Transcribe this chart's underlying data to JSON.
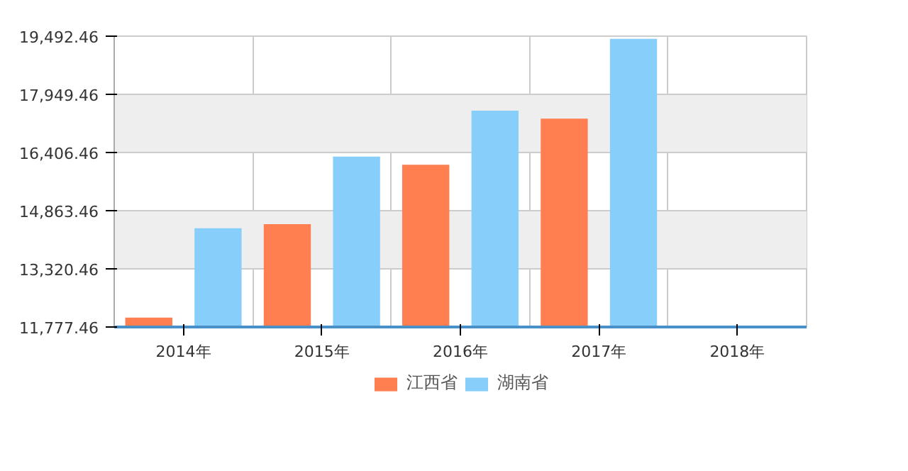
{
  "chart_data": {
    "type": "bar",
    "categories": [
      "2014年",
      "2015年",
      "2016年",
      "2017年",
      "2018年"
    ],
    "series": [
      {
        "name": "江西省",
        "color": "#ff7f50",
        "values": [
          12029,
          14504,
          16083,
          17303,
          null
        ]
      },
      {
        "name": "湖南省",
        "color": "#87cefa",
        "values": [
          14397,
          16298,
          17518,
          19420,
          null
        ]
      }
    ],
    "ylim": [
      11777.46,
      19492.46
    ],
    "yticks": [
      {
        "value": 11777.46,
        "label": "11,777.46"
      },
      {
        "value": 13320.46,
        "label": "13,320.46"
      },
      {
        "value": 14863.46,
        "label": "14,863.46"
      },
      {
        "value": 16406.46,
        "label": "16,406.46"
      },
      {
        "value": 17949.46,
        "label": "17,949.46"
      },
      {
        "value": 19492.46,
        "label": "19,492.46"
      }
    ],
    "grid": true,
    "legend": "bottom"
  }
}
